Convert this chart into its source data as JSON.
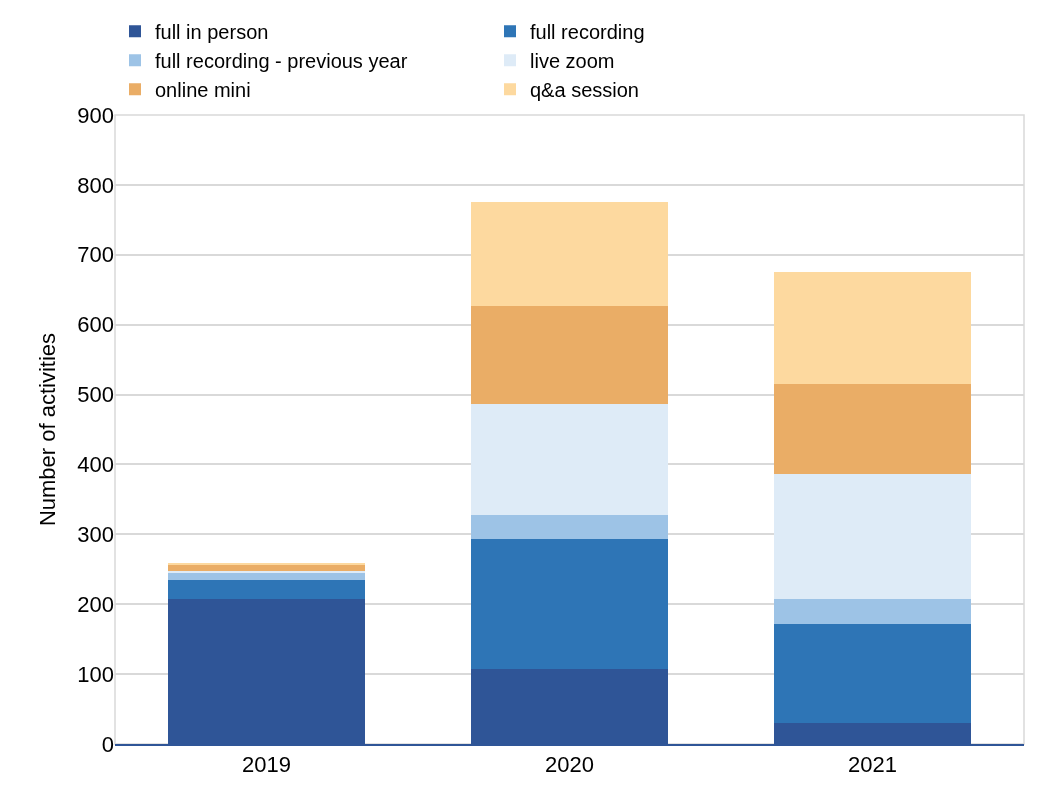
{
  "chart_data": {
    "type": "bar",
    "stacked": true,
    "ylabel": "Number of activities",
    "categories": [
      "2019",
      "2020",
      "2021"
    ],
    "series": [
      {
        "name": "full in person",
        "color": "#2f5597",
        "values": [
          207,
          107,
          30
        ]
      },
      {
        "name": "full recording",
        "color": "#2e75b6",
        "values": [
          27,
          186,
          142
        ]
      },
      {
        "name": "full recording - previous year",
        "color": "#9dc3e6",
        "values": [
          11,
          35,
          35
        ]
      },
      {
        "name": "live zoom",
        "color": "#deebf7",
        "values": [
          2,
          159,
          179
        ]
      },
      {
        "name": "online mini",
        "color": "#eaad66",
        "values": [
          9,
          140,
          129
        ]
      },
      {
        "name": "q&a session",
        "color": "#fdd99f",
        "values": [
          3,
          149,
          160
        ]
      }
    ],
    "ylim": [
      0,
      900
    ],
    "yticks": [
      0,
      100,
      200,
      300,
      400,
      500,
      600,
      700,
      800,
      900
    ],
    "grid": "y",
    "legend": "top"
  }
}
